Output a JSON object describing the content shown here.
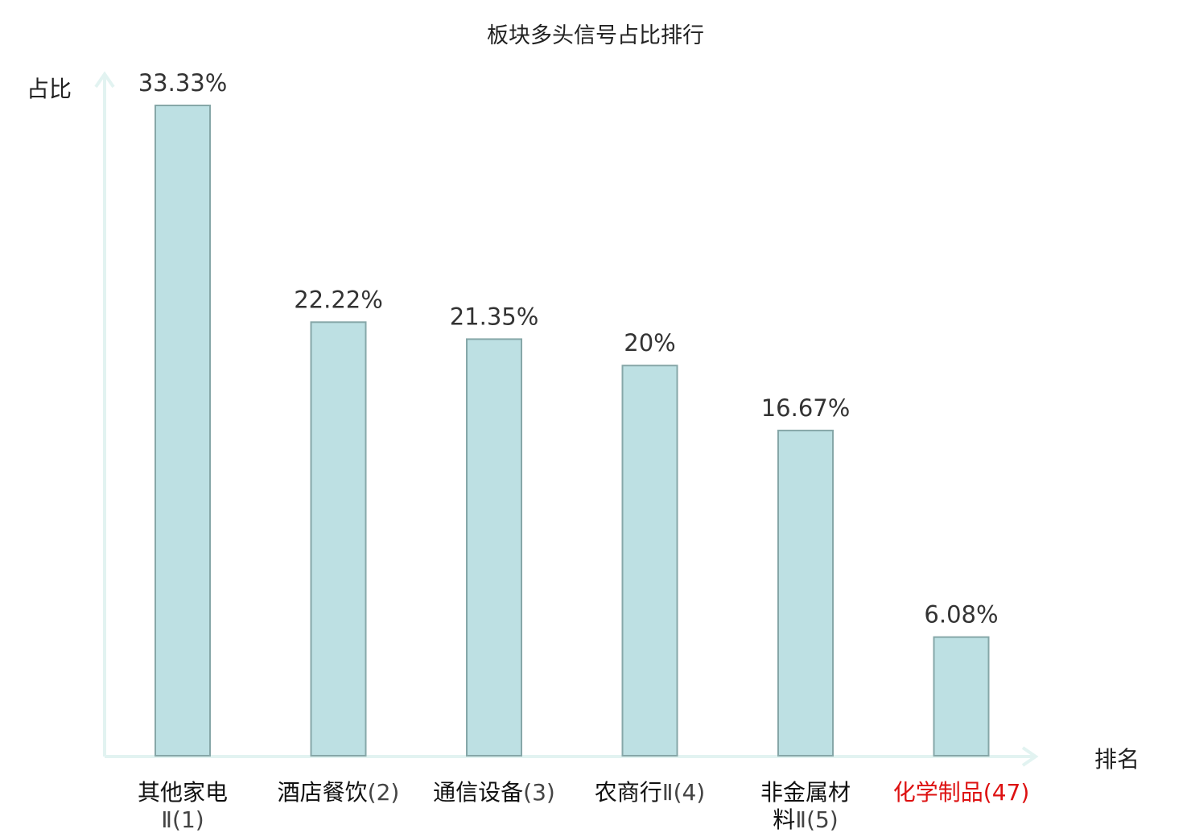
{
  "chart_data": {
    "type": "bar",
    "title": "板块多头信号占比排行",
    "ylabel": "占比",
    "xlabel": "排名",
    "ylim": [
      0,
      33.33
    ],
    "grid": false,
    "legend": "none",
    "bars": [
      {
        "name": "其他家电",
        "rank": "Ⅱ(1)",
        "value": 33.33,
        "label": "33.33%",
        "highlight": false
      },
      {
        "name": "酒店餐饮",
        "rank": "(2)",
        "value": 22.22,
        "label": "22.22%",
        "highlight": false
      },
      {
        "name": "通信设备",
        "rank": "(3)",
        "value": 21.35,
        "label": "21.35%",
        "highlight": false
      },
      {
        "name": "农商行",
        "rank": "Ⅱ(4)",
        "value": 20,
        "label": "20%",
        "highlight": false
      },
      {
        "name": "非金属材料",
        "rank": "Ⅱ(5)",
        "value": 16.67,
        "label": "16.67%",
        "highlight": false
      },
      {
        "name": "化学制品",
        "rank": "(47)",
        "value": 6.08,
        "label": "6.08%",
        "highlight": true
      }
    ],
    "colors": {
      "bar_fill": "#bde0e3",
      "bar_stroke": "#86a7a8",
      "axis": "#e2f3f1",
      "highlight_text": "#dd1111"
    }
  }
}
